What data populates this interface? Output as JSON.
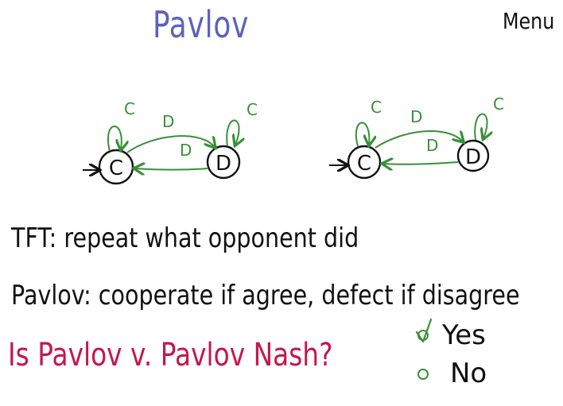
{
  "title": "Pavlov",
  "corner_text": "Menu",
  "colors": {
    "title": "#5a62c0",
    "ink": "#111111",
    "arrows": "#3a8f3a",
    "question": "#c4174e",
    "option_marker": "#3a8f3a"
  },
  "diagrams": [
    {
      "states": [
        "C",
        "D"
      ],
      "start_state": "C",
      "transitions": [
        {
          "from": "C",
          "to": "C",
          "label": "C"
        },
        {
          "from": "C",
          "to": "D",
          "label": "D"
        },
        {
          "from": "D",
          "to": "C",
          "label": "D"
        },
        {
          "from": "D",
          "to": "D",
          "label": "C"
        }
      ]
    },
    {
      "states": [
        "C",
        "D"
      ],
      "start_state": "C",
      "transitions": [
        {
          "from": "C",
          "to": "C",
          "label": "C"
        },
        {
          "from": "C",
          "to": "D",
          "label": "D"
        },
        {
          "from": "D",
          "to": "C",
          "label": "D"
        },
        {
          "from": "D",
          "to": "D",
          "label": "C"
        }
      ]
    }
  ],
  "tft_line": "TFT:  repeat what opponent did",
  "pavlov_line": "Pavlov:  cooperate if agree, defect if disagree",
  "question": "Is Pavlov v. Pavlov Nash?",
  "options": [
    {
      "label": "Yes",
      "selected": true
    },
    {
      "label": "No",
      "selected": false
    }
  ]
}
